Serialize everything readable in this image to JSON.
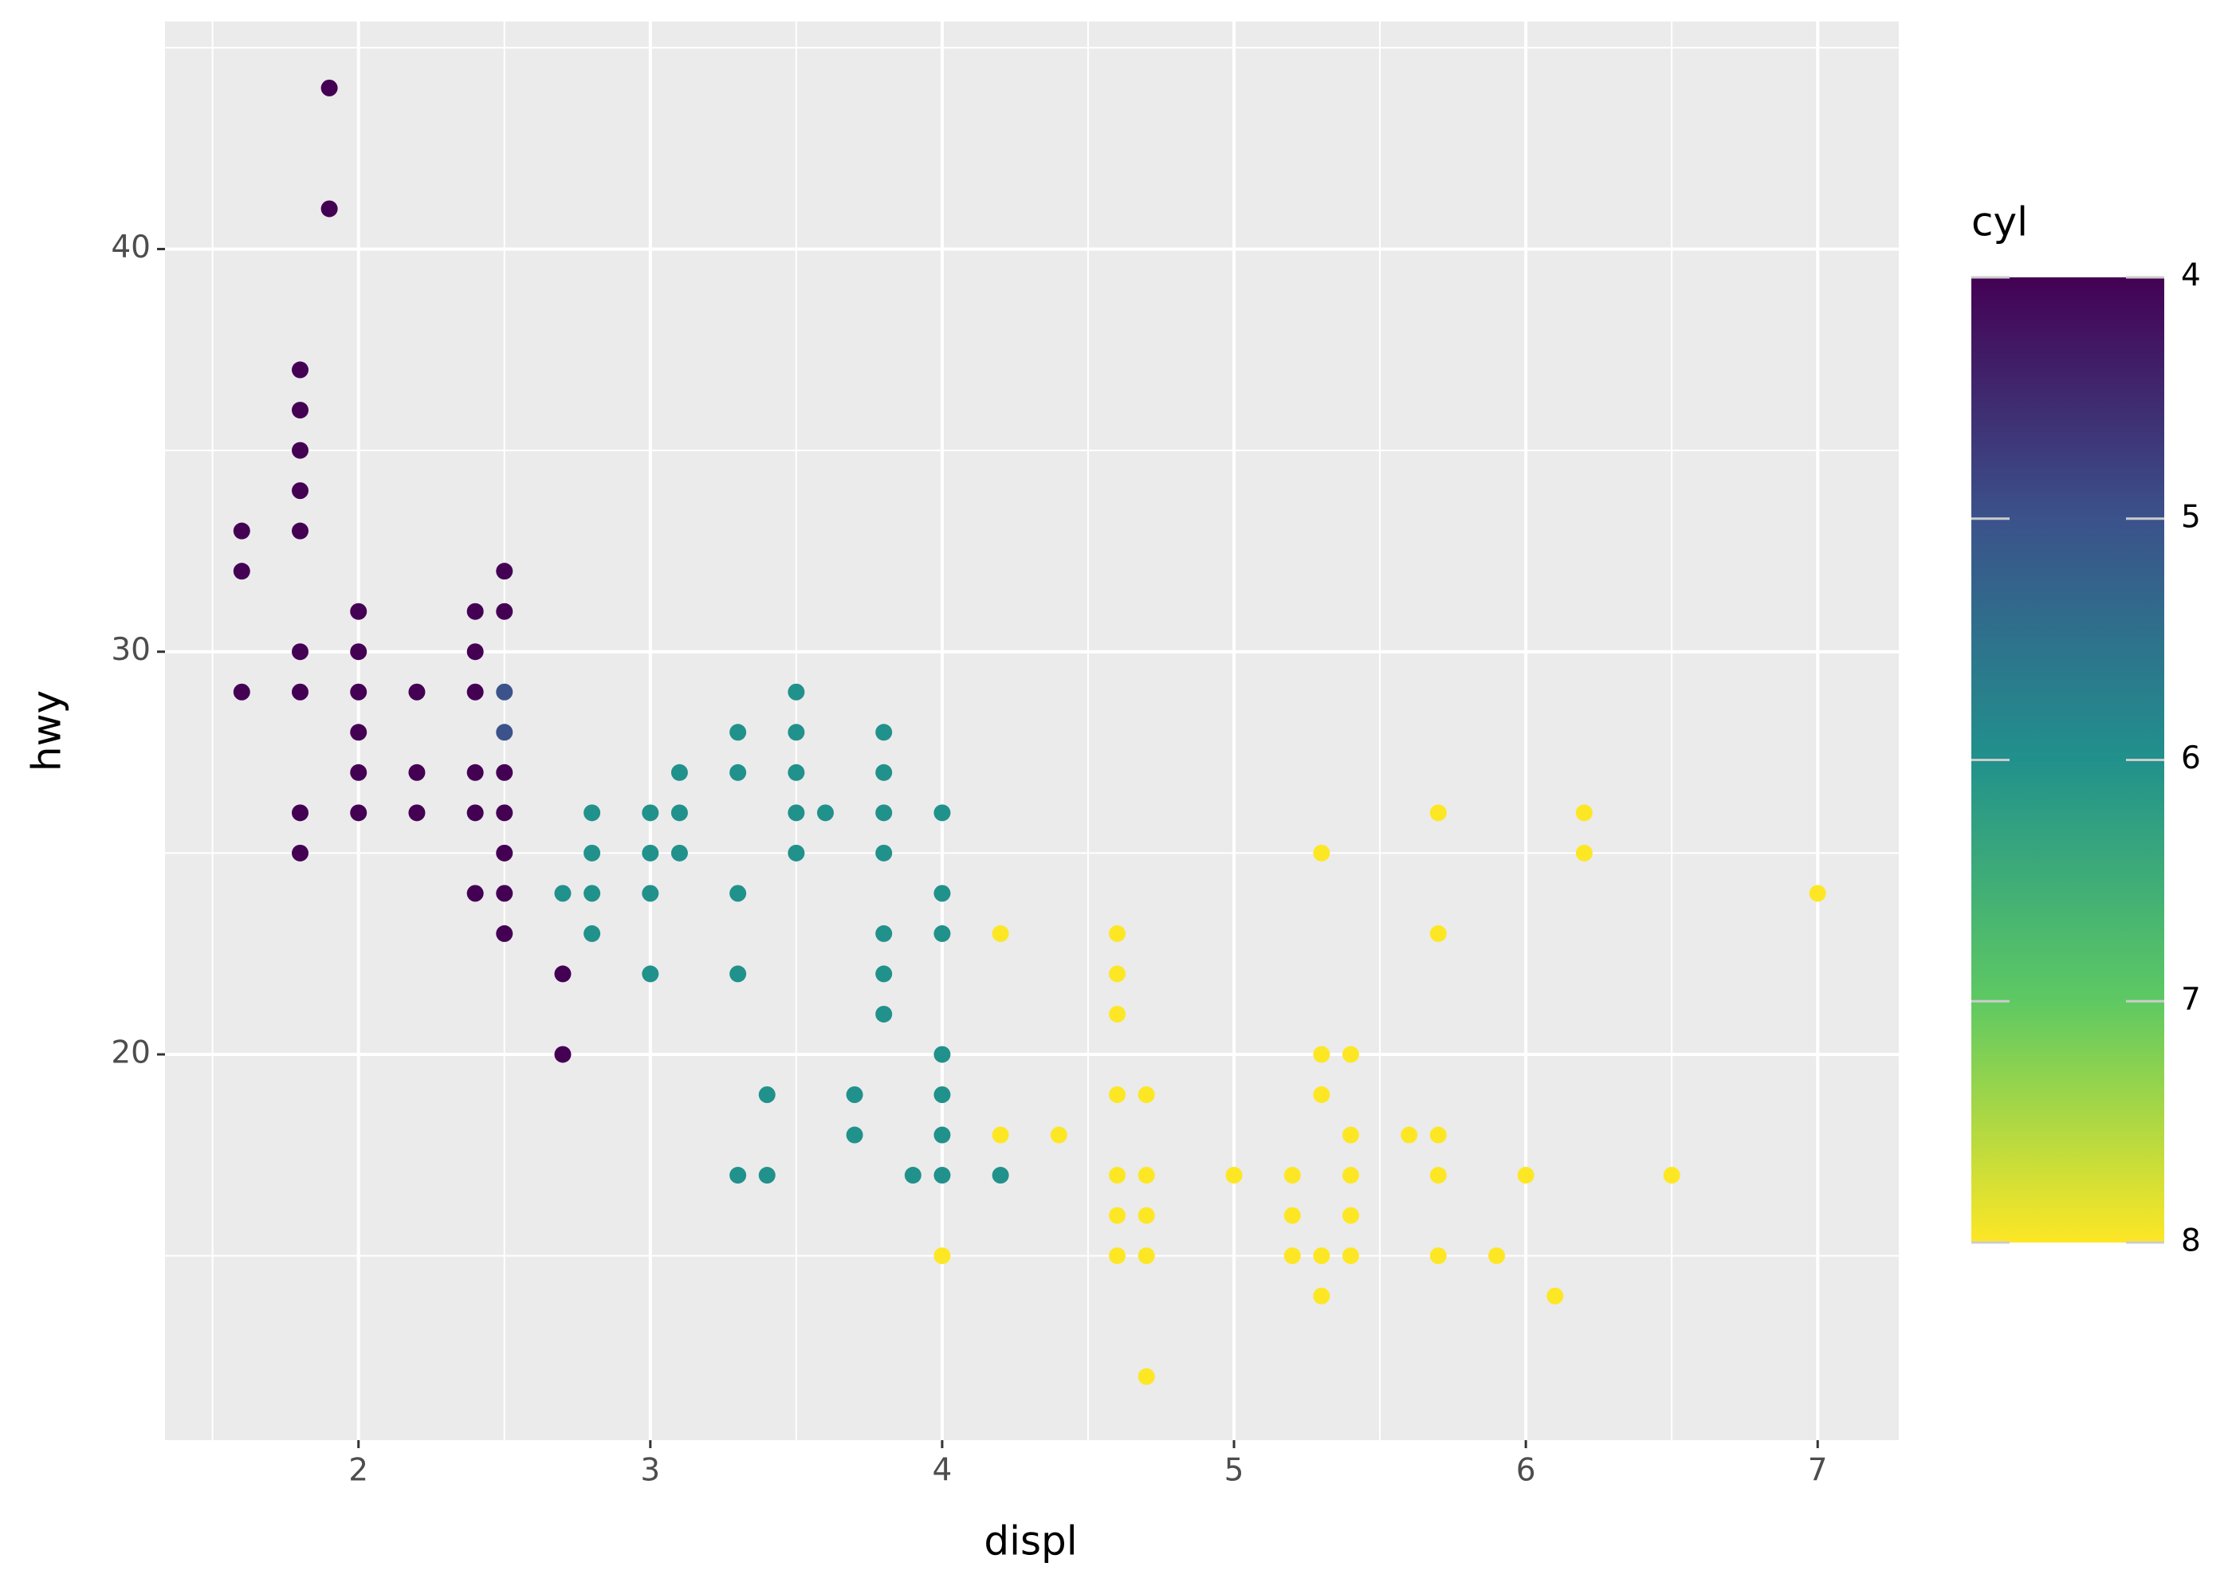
{
  "chart_data": {
    "type": "scatter",
    "x_label": "displ",
    "y_label": "hwy",
    "legend_title": "cyl",
    "x": [
      1.9,
      1.9,
      1.8,
      1.8,
      1.8,
      1.8,
      1.8,
      1.6,
      1.6,
      2.5,
      2.0,
      2.4,
      2.5,
      1.8,
      2.0,
      2.4,
      1.6,
      1.8,
      2.0,
      2.2,
      2.4,
      2.0,
      2.0,
      2.2,
      2.4,
      2.5,
      1.8,
      2.0,
      2.2,
      2.4,
      2.5,
      1.8,
      2.5,
      2.4,
      2.5,
      2.5,
      2.7,
      2.7,
      2.5,
      2.5,
      2.7,
      2.8,
      2.8,
      2.8,
      2.8,
      3.0,
      3.0,
      3.0,
      3.0,
      3.1,
      3.1,
      3.1,
      3.3,
      3.3,
      3.3,
      3.3,
      3.3,
      3.4,
      3.4,
      3.5,
      3.5,
      3.5,
      3.5,
      3.5,
      3.6,
      3.7,
      3.7,
      3.8,
      3.8,
      3.8,
      3.8,
      3.8,
      3.8,
      3.8,
      3.9,
      4.0,
      4.0,
      4.0,
      4.0,
      4.0,
      4.0,
      4.0,
      4.2,
      4.0,
      4.2,
      4.2,
      4.4,
      4.6,
      4.6,
      4.6,
      4.6,
      4.6,
      4.6,
      4.6,
      4.7,
      4.7,
      4.7,
      4.7,
      4.7,
      5.0,
      5.2,
      5.2,
      5.2,
      5.3,
      5.3,
      5.3,
      5.3,
      5.3,
      5.4,
      5.4,
      5.4,
      5.4,
      5.4,
      5.6,
      5.7,
      5.7,
      5.7,
      5.7,
      5.7,
      5.9,
      6.0,
      6.1,
      6.2,
      6.2,
      6.5,
      7.0
    ],
    "values": [
      44,
      41,
      37,
      36,
      35,
      34,
      33,
      33,
      32,
      32,
      31,
      31,
      31,
      30,
      30,
      30,
      29,
      29,
      29,
      29,
      29,
      28,
      27,
      27,
      27,
      27,
      26,
      26,
      26,
      26,
      26,
      25,
      25,
      24,
      24,
      23,
      22,
      20,
      29,
      28,
      24,
      26,
      25,
      24,
      23,
      26,
      25,
      24,
      22,
      27,
      26,
      25,
      28,
      27,
      24,
      22,
      17,
      19,
      17,
      29,
      28,
      27,
      26,
      25,
      26,
      19,
      18,
      28,
      27,
      26,
      25,
      23,
      22,
      21,
      17,
      26,
      24,
      23,
      20,
      19,
      18,
      17,
      17,
      15,
      23,
      18,
      18,
      23,
      22,
      21,
      19,
      17,
      16,
      15,
      19,
      17,
      16,
      15,
      12,
      17,
      17,
      16,
      15,
      25,
      20,
      19,
      15,
      14,
      20,
      18,
      17,
      16,
      15,
      18,
      26,
      23,
      18,
      17,
      15,
      15,
      17,
      14,
      26,
      25,
      17,
      24
    ],
    "cyl": [
      4,
      4,
      4,
      4,
      4,
      4,
      4,
      4,
      4,
      4,
      4,
      4,
      4,
      4,
      4,
      4,
      4,
      4,
      4,
      4,
      4,
      4,
      4,
      4,
      4,
      4,
      4,
      4,
      4,
      4,
      4,
      4,
      4,
      4,
      4,
      4,
      4,
      4,
      5,
      5,
      6,
      6,
      6,
      6,
      6,
      6,
      6,
      6,
      6,
      6,
      6,
      6,
      6,
      6,
      6,
      6,
      6,
      6,
      6,
      6,
      6,
      6,
      6,
      6,
      6,
      6,
      6,
      6,
      6,
      6,
      6,
      6,
      6,
      6,
      6,
      6,
      6,
      6,
      6,
      6,
      6,
      6,
      6,
      8,
      8,
      8,
      8,
      8,
      8,
      8,
      8,
      8,
      8,
      8,
      8,
      8,
      8,
      8,
      8,
      8,
      8,
      8,
      8,
      8,
      8,
      8,
      8,
      8,
      8,
      8,
      8,
      8,
      8,
      8,
      8,
      8,
      8,
      8,
      8,
      8,
      8,
      8,
      8,
      8,
      8,
      8
    ],
    "xlim": [
      1.337,
      7.278
    ],
    "xticks": [
      2,
      3,
      4,
      5,
      6,
      7
    ],
    "ylim": [
      10.42,
      45.65
    ],
    "yticks": [
      20,
      30,
      40
    ],
    "colorlim": [
      4,
      8
    ],
    "colorticks": [
      4,
      5,
      6,
      7,
      8
    ],
    "colormap": [
      "#440154",
      "#3b528b",
      "#21918c",
      "#5ec962",
      "#fde725"
    ],
    "grid": true
  }
}
